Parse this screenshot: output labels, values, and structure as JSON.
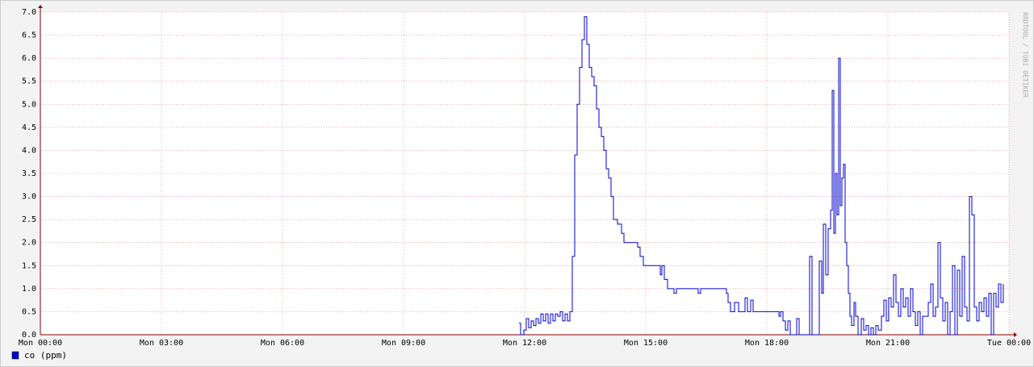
{
  "chart_data": {
    "type": "line",
    "step": true,
    "side_text": "RRDTOOL / TOBI OETIKER",
    "xlim": [
      0,
      24
    ],
    "xticks": [
      {
        "value": 0,
        "label": "Mon 00:00"
      },
      {
        "value": 3,
        "label": "Mon 03:00"
      },
      {
        "value": 6,
        "label": "Mon 06:00"
      },
      {
        "value": 9,
        "label": "Mon 09:00"
      },
      {
        "value": 12,
        "label": "Mon 12:00"
      },
      {
        "value": 15,
        "label": "Mon 15:00"
      },
      {
        "value": 18,
        "label": "Mon 18:00"
      },
      {
        "value": 21,
        "label": "Mon 21:00"
      },
      {
        "value": 24,
        "label": "Tue 00:00"
      }
    ],
    "ylim": [
      0,
      7
    ],
    "yticks": [
      {
        "value": 0,
        "label": "0.0"
      },
      0.5,
      {
        "value": 1,
        "label": "1.0"
      },
      1.5,
      {
        "value": 2,
        "label": "2.0"
      },
      2.5,
      {
        "value": 3,
        "label": "3.0"
      },
      3.5,
      {
        "value": 4,
        "label": "4.0"
      },
      4.5,
      {
        "value": 5,
        "label": "5.0"
      },
      5.5,
      {
        "value": 6,
        "label": "6.0"
      },
      6.5,
      {
        "value": 7,
        "label": "7.0"
      }
    ],
    "grid": true,
    "x": [
      11.86,
      11.9,
      11.98,
      12.04,
      12.1,
      12.16,
      12.22,
      12.28,
      12.34,
      12.4,
      12.46,
      12.52,
      12.58,
      12.64,
      12.7,
      12.76,
      12.82,
      12.88,
      12.94,
      13.0,
      13.06,
      13.12,
      13.18,
      13.24,
      13.3,
      13.36,
      13.42,
      13.48,
      13.54,
      13.6,
      13.66,
      13.72,
      13.78,
      13.84,
      13.9,
      13.96,
      14.02,
      14.08,
      14.14,
      14.2,
      14.3,
      14.4,
      14.46,
      14.8,
      14.86,
      14.94,
      15.36,
      15.4,
      15.46,
      15.54,
      15.64,
      15.7,
      15.76,
      16.3,
      16.36,
      17.0,
      17.04,
      17.1,
      17.2,
      17.3,
      17.46,
      17.52,
      17.6,
      17.66,
      18.3,
      18.34,
      18.4,
      18.46,
      18.52,
      18.58,
      18.74,
      18.8,
      19.06,
      19.12,
      19.3,
      19.36,
      19.4,
      19.46,
      19.52,
      19.58,
      19.62,
      19.66,
      19.7,
      19.74,
      19.78,
      19.82,
      19.86,
      19.9,
      19.94,
      19.98,
      20.02,
      20.06,
      20.1,
      20.16,
      20.2,
      20.26,
      20.34,
      20.4,
      20.46,
      20.52,
      20.58,
      20.64,
      20.7,
      20.76,
      20.84,
      20.9,
      20.96,
      21.02,
      21.08,
      21.14,
      21.2,
      21.26,
      21.32,
      21.38,
      21.44,
      21.5,
      21.56,
      21.62,
      21.68,
      21.74,
      21.8,
      21.86,
      22.0,
      22.06,
      22.12,
      22.18,
      22.24,
      22.3,
      22.36,
      22.42,
      22.48,
      22.54,
      22.6,
      22.66,
      22.72,
      22.78,
      22.84,
      22.9,
      22.96,
      23.02,
      23.08,
      23.14,
      23.2,
      23.26,
      23.32,
      23.38,
      23.44,
      23.5,
      23.56,
      23.62,
      23.68,
      23.74,
      23.8,
      23.86
    ],
    "series": [
      {
        "name": "co (ppm)",
        "color": "#0000cc",
        "values": [
          0.25,
          0.0,
          0.1,
          0.35,
          0.15,
          0.3,
          0.2,
          0.35,
          0.25,
          0.45,
          0.3,
          0.45,
          0.25,
          0.45,
          0.3,
          0.45,
          0.4,
          0.5,
          0.3,
          0.45,
          0.3,
          0.5,
          1.7,
          3.9,
          5.0,
          5.8,
          6.4,
          6.9,
          6.3,
          5.8,
          5.6,
          5.4,
          4.9,
          4.5,
          4.3,
          4.0,
          3.6,
          3.4,
          3.0,
          2.5,
          2.4,
          2.2,
          2.0,
          1.9,
          1.7,
          1.5,
          1.3,
          1.5,
          1.2,
          1.0,
          1.0,
          0.9,
          1.0,
          0.9,
          1.0,
          0.9,
          0.7,
          0.5,
          0.7,
          0.5,
          0.8,
          0.5,
          0.75,
          0.5,
          0.4,
          0.5,
          0.3,
          0.1,
          0.3,
          0.0,
          0.35,
          0.0,
          1.7,
          0.0,
          1.6,
          0.9,
          2.4,
          1.3,
          2.3,
          2.7,
          5.3,
          2.2,
          3.5,
          2.6,
          6.0,
          2.8,
          3.4,
          3.7,
          2.0,
          1.5,
          0.9,
          0.4,
          0.2,
          0.7,
          0.4,
          0.0,
          0.35,
          0.1,
          0.2,
          0.0,
          0.15,
          0.0,
          0.2,
          0.1,
          0.4,
          0.75,
          0.3,
          0.8,
          0.6,
          1.3,
          0.7,
          0.4,
          1.0,
          0.6,
          0.8,
          0.4,
          1.0,
          0.5,
          0.2,
          0.5,
          0.0,
          0.4,
          0.7,
          1.1,
          0.4,
          0.6,
          2.0,
          0.8,
          0.3,
          0.7,
          0.0,
          0.5,
          1.5,
          0.0,
          1.4,
          0.4,
          1.7,
          0.6,
          0.3,
          3.0,
          2.6,
          0.6,
          0.3,
          0.7,
          0.5,
          0.8,
          0.4,
          0.9,
          0.0,
          0.9,
          0.6,
          1.1,
          0.7,
          1.1
        ]
      }
    ]
  }
}
